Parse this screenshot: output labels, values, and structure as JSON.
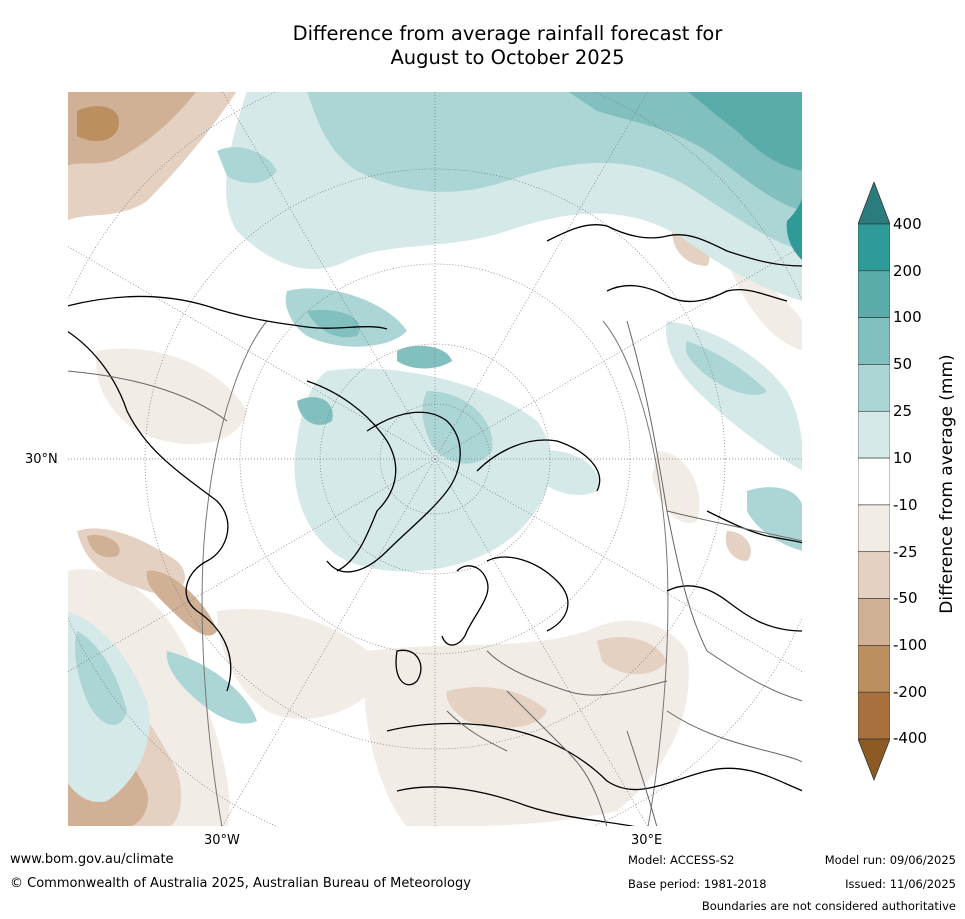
{
  "title": {
    "line1": "Difference from average rainfall forecast for",
    "line2": "August to October 2025"
  },
  "map": {
    "projection": "north polar stereographic",
    "lat_labels": [
      "30°N"
    ],
    "lon_labels": [
      "30°W",
      "30°E"
    ]
  },
  "colorbar": {
    "title": "Difference from average (mm)",
    "tick_labels": [
      "400",
      "200",
      "100",
      "50",
      "25",
      "10",
      "-10",
      "-25",
      "-50",
      "-100",
      "-200",
      "-400"
    ],
    "colors": [
      "#2a7d7c",
      "#2f9a97",
      "#5aacaa",
      "#82c0bf",
      "#acd6d5",
      "#d5e9e8",
      "#ffffff",
      "#f2ece6",
      "#e4d1c2",
      "#d0b195",
      "#bc8f60",
      "#a8703c",
      "#8e5a24"
    ]
  },
  "footer": {
    "website": "www.bom.gov.au/climate",
    "copyright": "© Commonwealth of Australia 2025, Australian Bureau of Meteorology",
    "model": "Model: ACCESS-S2",
    "base_period": "Base period: 1981-2018",
    "model_run": "Model run: 09/06/2025",
    "issued": "Issued: 11/06/2025",
    "disclaimer": "Boundaries are not considered authoritative"
  }
}
